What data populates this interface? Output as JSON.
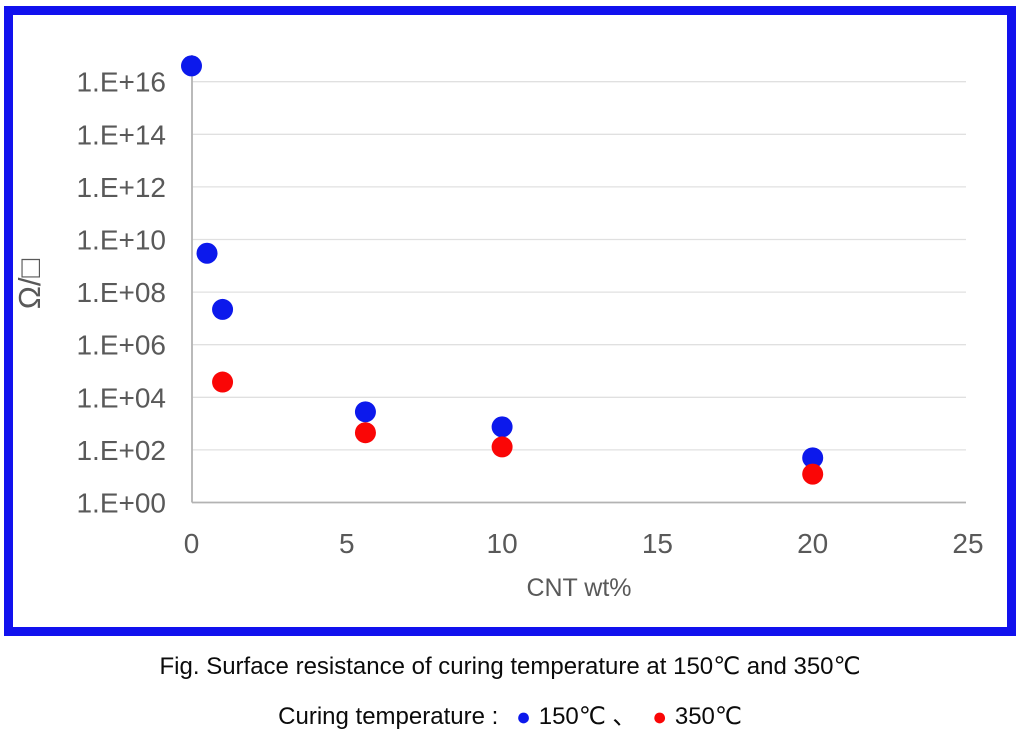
{
  "figure": {
    "caption": "Fig. Surface resistance of curing temperature at 150℃ and 350℃",
    "legend_prefix": "Curing temperature :",
    "legend_separator": "、",
    "legend": [
      {
        "label": "150℃",
        "marker": "●",
        "color": "#0c19ec"
      },
      {
        "label": "350℃",
        "marker": "●",
        "color": "#fa0606"
      }
    ]
  },
  "chart_data": {
    "type": "scatter",
    "title": "",
    "xlabel": "CNT wt%",
    "ylabel": "Ω/□",
    "grid": true,
    "x_axis": {
      "min": 0,
      "max": 25,
      "ticks": [
        0,
        5,
        10,
        15,
        20,
        25
      ]
    },
    "y_axis": {
      "scale": "log",
      "min": 1,
      "max": 1e+16,
      "ticks": [
        {
          "exp": 0,
          "label": "1.E+00"
        },
        {
          "exp": 2,
          "label": "1.E+02"
        },
        {
          "exp": 4,
          "label": "1.E+04"
        },
        {
          "exp": 6,
          "label": "1.E+06"
        },
        {
          "exp": 8,
          "label": "1.E+08"
        },
        {
          "exp": 10,
          "label": "1.E+10"
        },
        {
          "exp": 12,
          "label": "1.E+12"
        },
        {
          "exp": 14,
          "label": "1.E+14"
        },
        {
          "exp": 16,
          "label": "1.E+16"
        }
      ]
    },
    "series": [
      {
        "id": "150c",
        "name": "150℃",
        "color": "#0c19ec",
        "points": [
          [
            0,
            4e+16
          ],
          [
            0.5,
            3000000000.0
          ],
          [
            1,
            22000000.0
          ],
          [
            5.6,
            2800.0
          ],
          [
            10,
            750.0
          ],
          [
            20,
            50.0
          ]
        ]
      },
      {
        "id": "350c",
        "name": "350℃",
        "color": "#fa0606",
        "points": [
          [
            1,
            38000.0
          ],
          [
            5.6,
            450.0
          ],
          [
            10,
            130.0
          ],
          [
            20,
            12.0
          ]
        ]
      }
    ]
  },
  "styles": {
    "frame_border": "#1111ee",
    "gridline": "#e0e0e0",
    "axis_line": "#b3b3b3",
    "tick_text": "#595959",
    "caption_text": "#0b0b0b"
  }
}
